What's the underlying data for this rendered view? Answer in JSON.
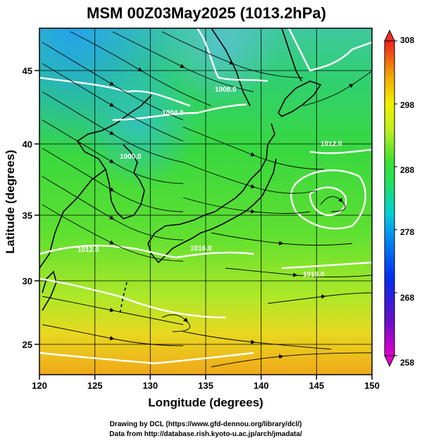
{
  "title": "MSM 00Z03May2025 (1013.2hPa)",
  "xlabel": "Longitude (degrees)",
  "ylabel": "Latitude  (degrees)",
  "xticks": [
    "120",
    "125",
    "130",
    "135",
    "140",
    "145",
    "150"
  ],
  "yticks": [
    "25",
    "30",
    "35",
    "40",
    "45"
  ],
  "colorbar": {
    "ticks": [
      "258",
      "268",
      "278",
      "288",
      "298",
      "308"
    ],
    "colors": [
      "#e000c8",
      "#5010c8",
      "#0020f0",
      "#0090f0",
      "#00d0d8",
      "#10e890",
      "#30e030",
      "#a0f020",
      "#f0f000",
      "#f0c000",
      "#f08000",
      "#f03020"
    ]
  },
  "contour_labels": [
    "1008.0",
    "1004.0",
    "1000.0",
    "1012.0",
    "1016.0",
    "1012.0",
    "1016.0"
  ],
  "credits": {
    "line1": "Drawing by DCL (https://www.gfd-dennou.org/library/dcl/)",
    "line2": "Data from http://database.rish.kyoto-u.ac.jp/arch/jmadata/"
  }
}
